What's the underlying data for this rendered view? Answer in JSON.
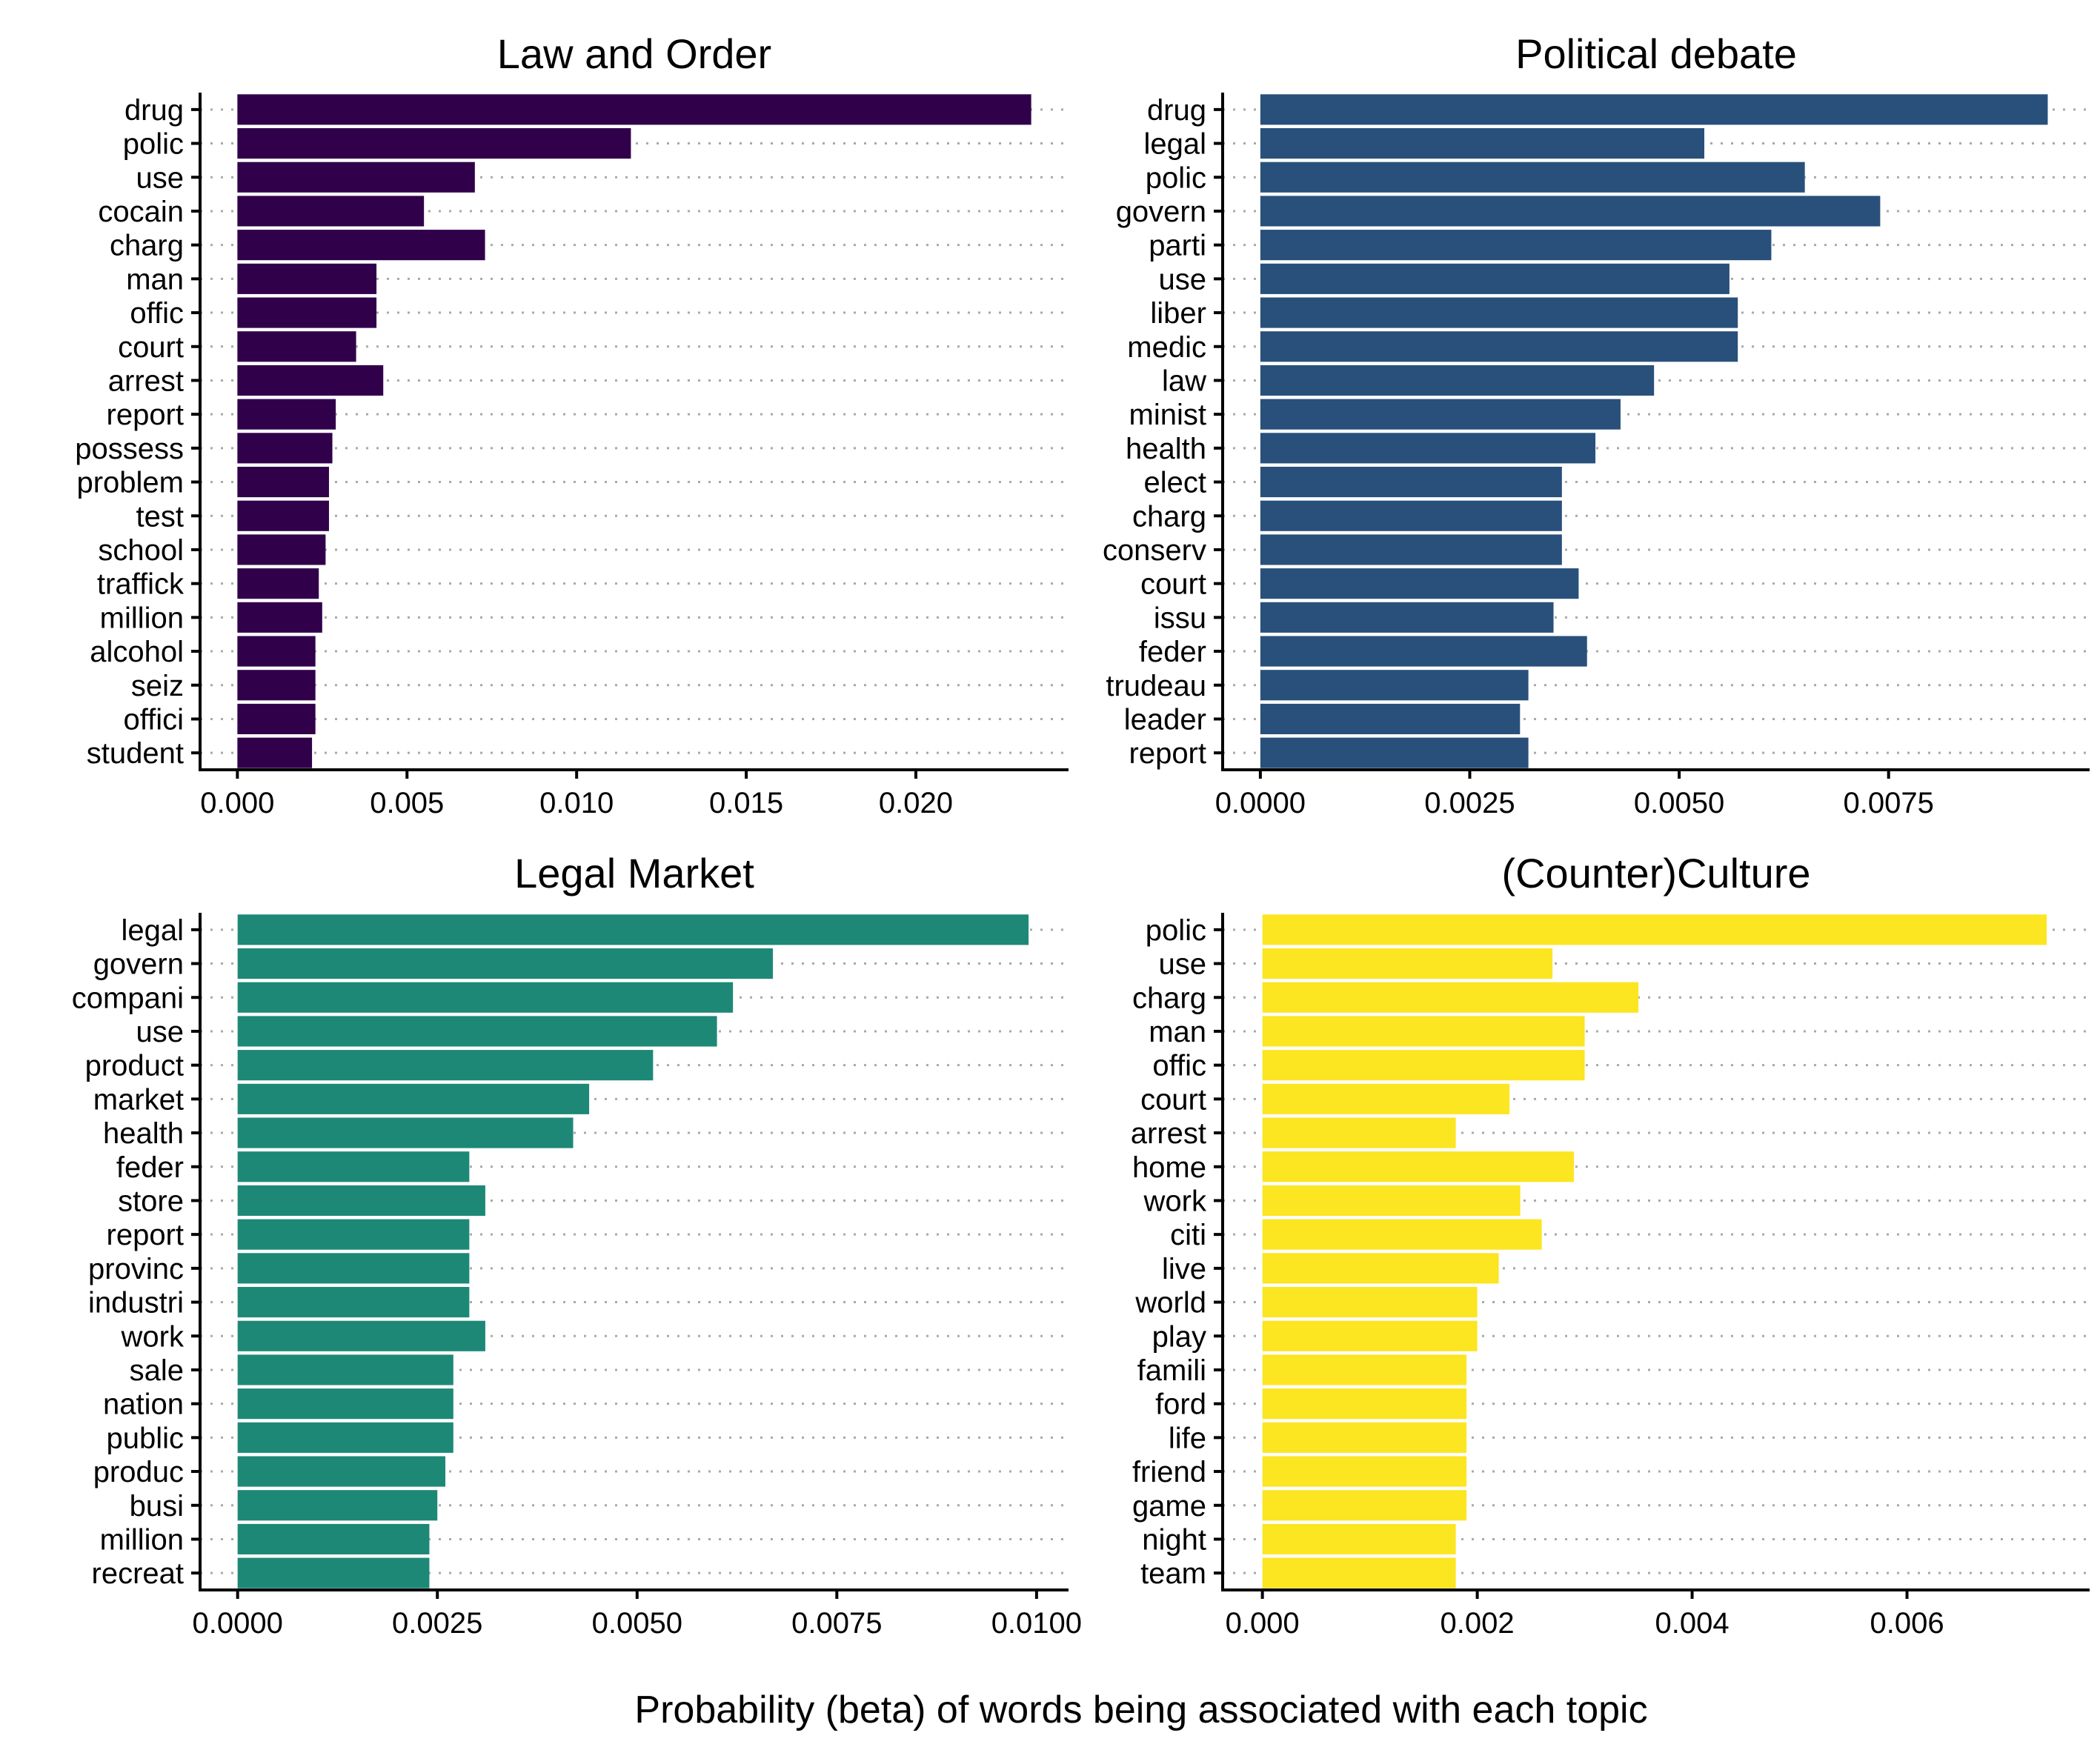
{
  "figure": {
    "xlabel": "Probability (beta) of words being associated with each topic"
  },
  "chart_data": [
    {
      "type": "bar",
      "orientation": "horizontal",
      "title": "Law and Order",
      "color": "#31004a",
      "grid": "dotted horizontal",
      "xlim": [
        -0.0011,
        0.0245
      ],
      "ticks": [
        0.0,
        0.005,
        0.01,
        0.015,
        0.02
      ],
      "tick_labels": [
        "0.000",
        "0.005",
        "0.010",
        "0.015",
        "0.020"
      ],
      "categories": [
        "drug",
        "polic",
        "use",
        "cocain",
        "charg",
        "man",
        "offic",
        "court",
        "arrest",
        "report",
        "possess",
        "problem",
        "test",
        "school",
        "traffick",
        "million",
        "alcohol",
        "seiz",
        "offici",
        "student"
      ],
      "values": [
        0.0234,
        0.0116,
        0.007,
        0.0055,
        0.0073,
        0.0041,
        0.0041,
        0.0035,
        0.0043,
        0.0029,
        0.0028,
        0.0027,
        0.0027,
        0.0026,
        0.0024,
        0.0025,
        0.0023,
        0.0023,
        0.0023,
        0.0022
      ]
    },
    {
      "type": "bar",
      "orientation": "horizontal",
      "title": "Political debate",
      "color": "#29507b",
      "grid": "dotted horizontal",
      "xlim": [
        -0.00045,
        0.0099
      ],
      "ticks": [
        0.0,
        0.0025,
        0.005,
        0.0075
      ],
      "tick_labels": [
        "0.0000",
        "0.0025",
        "0.0050",
        "0.0075"
      ],
      "categories": [
        "drug",
        "legal",
        "polic",
        "govern",
        "parti",
        "use",
        "liber",
        "medic",
        "law",
        "minist",
        "health",
        "elect",
        "charg",
        "conserv",
        "court",
        "issu",
        "feder",
        "trudeau",
        "leader",
        "report"
      ],
      "values": [
        0.0094,
        0.0053,
        0.0065,
        0.0074,
        0.0061,
        0.0056,
        0.0057,
        0.0057,
        0.0047,
        0.0043,
        0.004,
        0.0036,
        0.0036,
        0.0036,
        0.0038,
        0.0035,
        0.0039,
        0.0032,
        0.0031,
        0.0032
      ]
    },
    {
      "type": "bar",
      "orientation": "horizontal",
      "title": "Legal Market",
      "color": "#1e8877",
      "grid": "dotted horizontal",
      "xlim": [
        -0.00047,
        0.0104
      ],
      "ticks": [
        0.0,
        0.0025,
        0.005,
        0.0075,
        0.01
      ],
      "tick_labels": [
        "0.0000",
        "0.0025",
        "0.0050",
        "0.0075",
        "0.0100"
      ],
      "categories": [
        "legal",
        "govern",
        "compani",
        "use",
        "product",
        "market",
        "health",
        "feder",
        "store",
        "report",
        "provinc",
        "industri",
        "work",
        "sale",
        "nation",
        "public",
        "produc",
        "busi",
        "million",
        "recreat"
      ],
      "values": [
        0.0099,
        0.0067,
        0.0062,
        0.006,
        0.0052,
        0.0044,
        0.0042,
        0.0029,
        0.0031,
        0.0029,
        0.0029,
        0.0029,
        0.0031,
        0.0027,
        0.0027,
        0.0027,
        0.0026,
        0.0025,
        0.0024,
        0.0024
      ]
    },
    {
      "type": "bar",
      "orientation": "horizontal",
      "title": "(Counter)Culture",
      "color": "#fce521",
      "grid": "dotted horizontal",
      "xlim": [
        -0.00037,
        0.0077
      ],
      "ticks": [
        0.0,
        0.002,
        0.004,
        0.006
      ],
      "tick_labels": [
        "0.000",
        "0.002",
        "0.004",
        "0.006"
      ],
      "categories": [
        "polic",
        "use",
        "charg",
        "man",
        "offic",
        "court",
        "arrest",
        "home",
        "work",
        "citi",
        "live",
        "world",
        "play",
        "famili",
        "ford",
        "life",
        "friend",
        "game",
        "night",
        "team"
      ],
      "values": [
        0.0073,
        0.0027,
        0.0035,
        0.003,
        0.003,
        0.0023,
        0.0018,
        0.0029,
        0.0024,
        0.0026,
        0.0022,
        0.002,
        0.002,
        0.0019,
        0.0019,
        0.0019,
        0.0019,
        0.0019,
        0.0018,
        0.0018
      ]
    }
  ]
}
